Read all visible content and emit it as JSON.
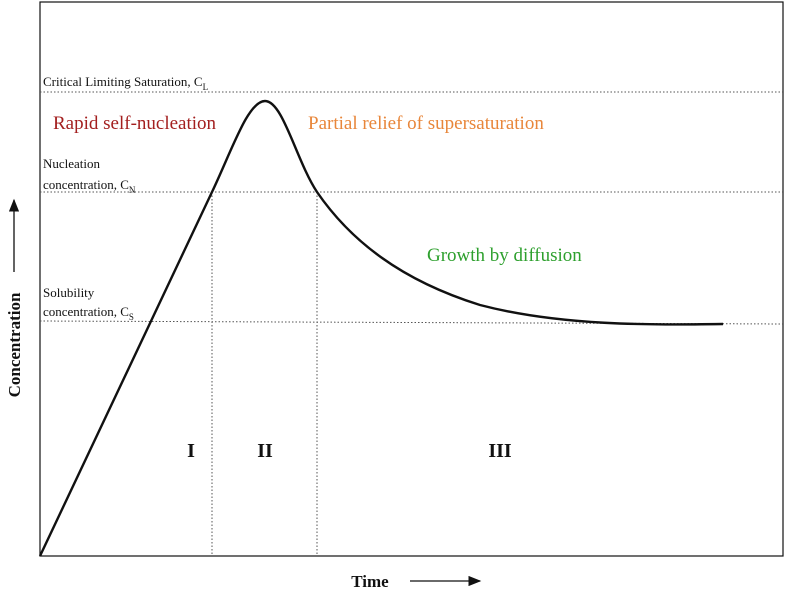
{
  "axes": {
    "x_label": "Time",
    "y_label": "Concentration"
  },
  "levels": [
    {
      "lines": [
        "Critical Limiting Saturation, C"
      ],
      "subscript": "L"
    },
    {
      "lines": [
        "Nucleation",
        "concentration, C"
      ],
      "subscript": "N"
    },
    {
      "lines": [
        "Solubility",
        "concentration, C"
      ],
      "subscript": "S"
    }
  ],
  "annotations": [
    "Rapid self-nucleation",
    "Partial relief of supersaturation",
    "Growth by diffusion"
  ],
  "stages": [
    "I",
    "II",
    "III"
  ]
}
